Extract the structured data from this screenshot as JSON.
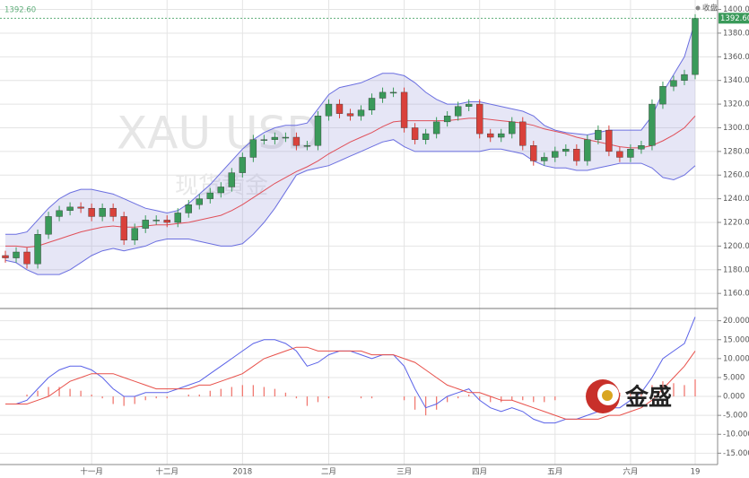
{
  "chart_data": [
    {
      "type": "candlestick",
      "watermark": "XAU USD",
      "watermark_sub": "现货黄金",
      "legend_label": "收盘",
      "last_value_label": "1392.60",
      "logo_text": "金盛",
      "categories": [
        null,
        null,
        null,
        null,
        null,
        null,
        null,
        null,
        "十一月",
        null,
        null,
        null,
        null,
        null,
        null,
        "十二月",
        null,
        null,
        null,
        null,
        null,
        null,
        "2018",
        null,
        null,
        null,
        null,
        null,
        null,
        null,
        "二月",
        null,
        null,
        null,
        null,
        null,
        null,
        "三月",
        null,
        null,
        null,
        null,
        null,
        null,
        "四月",
        null,
        null,
        null,
        null,
        null,
        null,
        "五月",
        null,
        null,
        null,
        null,
        null,
        null,
        "六月",
        null,
        null,
        null,
        null,
        null,
        "19"
      ],
      "open": [
        1192,
        1190,
        1195,
        1185,
        1210,
        1225,
        1230,
        1233,
        1232,
        1225,
        1232,
        1225,
        1205,
        1215,
        1222,
        1222,
        1220,
        1228,
        1235,
        1240,
        1245,
        1250,
        1262,
        1275,
        1290,
        1290,
        1292,
        1292,
        1285,
        1285,
        1310,
        1320,
        1312,
        1310,
        1315,
        1325,
        1330,
        1330,
        1300,
        1290,
        1295,
        1305,
        1310,
        1318,
        1320,
        1295,
        1292,
        1295,
        1305,
        1285,
        1272,
        1275,
        1280,
        1282,
        1272,
        1290,
        1298,
        1280,
        1275,
        1282,
        1285,
        1320,
        1335,
        1340,
        1345
      ],
      "high": [
        1196,
        1199,
        1199,
        1214,
        1229,
        1234,
        1237,
        1237,
        1236,
        1236,
        1236,
        1229,
        1219,
        1226,
        1226,
        1226,
        1232,
        1239,
        1244,
        1249,
        1254,
        1266,
        1279,
        1294,
        1294,
        1296,
        1296,
        1296,
        1289,
        1314,
        1324,
        1324,
        1316,
        1319,
        1329,
        1334,
        1334,
        1334,
        1304,
        1299,
        1309,
        1314,
        1322,
        1324,
        1324,
        1299,
        1299,
        1309,
        1309,
        1289,
        1279,
        1284,
        1286,
        1286,
        1294,
        1302,
        1302,
        1284,
        1286,
        1289,
        1324,
        1339,
        1344,
        1349,
        1396
      ],
      "low": [
        1186,
        1186,
        1181,
        1181,
        1206,
        1221,
        1226,
        1228,
        1221,
        1221,
        1221,
        1201,
        1201,
        1211,
        1218,
        1216,
        1216,
        1224,
        1231,
        1236,
        1241,
        1246,
        1258,
        1271,
        1286,
        1286,
        1288,
        1281,
        1281,
        1281,
        1306,
        1308,
        1306,
        1306,
        1311,
        1321,
        1326,
        1296,
        1286,
        1286,
        1291,
        1301,
        1306,
        1314,
        1291,
        1288,
        1288,
        1291,
        1281,
        1268,
        1268,
        1271,
        1276,
        1268,
        1268,
        1286,
        1276,
        1271,
        1271,
        1278,
        1281,
        1316,
        1331,
        1336,
        1341
      ],
      "close": [
        1190,
        1195,
        1185,
        1210,
        1225,
        1230,
        1233,
        1232,
        1225,
        1232,
        1225,
        1205,
        1215,
        1222,
        1222,
        1220,
        1228,
        1235,
        1240,
        1245,
        1250,
        1262,
        1275,
        1290,
        1290,
        1292,
        1292,
        1285,
        1285,
        1310,
        1320,
        1312,
        1310,
        1315,
        1325,
        1330,
        1330,
        1300,
        1290,
        1295,
        1305,
        1310,
        1318,
        1320,
        1295,
        1292,
        1295,
        1305,
        1285,
        1272,
        1275,
        1280,
        1282,
        1272,
        1290,
        1298,
        1280,
        1275,
        1282,
        1285,
        1320,
        1335,
        1340,
        1345,
        1392.6
      ],
      "up_color": "#3a9a5a",
      "down_color": "#d9413b",
      "bands": {
        "band_color": "#6b6fe0",
        "mid_color": "#e0505a",
        "fill": "rgba(140,140,215,0.22)",
        "upper": [
          1210,
          1210,
          1212,
          1222,
          1232,
          1240,
          1245,
          1248,
          1248,
          1246,
          1244,
          1240,
          1236,
          1232,
          1230,
          1228,
          1230,
          1236,
          1244,
          1252,
          1262,
          1272,
          1282,
          1290,
          1296,
          1300,
          1302,
          1302,
          1304,
          1316,
          1328,
          1334,
          1336,
          1338,
          1342,
          1346,
          1346,
          1344,
          1338,
          1330,
          1324,
          1320,
          1320,
          1322,
          1322,
          1320,
          1318,
          1316,
          1314,
          1310,
          1302,
          1298,
          1296,
          1295,
          1294,
          1296,
          1298,
          1298,
          1298,
          1298,
          1310,
          1330,
          1345,
          1360,
          1390
        ],
        "middle": [
          1200,
          1200,
          1199,
          1200,
          1203,
          1206,
          1209,
          1212,
          1214,
          1216,
          1217,
          1216,
          1216,
          1217,
          1218,
          1218,
          1219,
          1220,
          1222,
          1224,
          1226,
          1230,
          1235,
          1241,
          1247,
          1253,
          1258,
          1263,
          1267,
          1272,
          1278,
          1283,
          1288,
          1292,
          1296,
          1301,
          1305,
          1306,
          1306,
          1306,
          1306,
          1306,
          1307,
          1308,
          1308,
          1307,
          1306,
          1305,
          1304,
          1302,
          1299,
          1297,
          1295,
          1292,
          1290,
          1288,
          1286,
          1284,
          1283,
          1283,
          1285,
          1289,
          1294,
          1300,
          1310
        ],
        "lower": [
          1188,
          1186,
          1180,
          1176,
          1176,
          1176,
          1180,
          1186,
          1192,
          1196,
          1198,
          1196,
          1198,
          1200,
          1204,
          1206,
          1206,
          1206,
          1204,
          1202,
          1200,
          1200,
          1202,
          1210,
          1220,
          1232,
          1246,
          1260,
          1264,
          1266,
          1268,
          1272,
          1276,
          1280,
          1284,
          1288,
          1290,
          1284,
          1280,
          1280,
          1280,
          1280,
          1280,
          1280,
          1280,
          1282,
          1282,
          1280,
          1278,
          1272,
          1268,
          1266,
          1266,
          1264,
          1264,
          1266,
          1268,
          1270,
          1270,
          1270,
          1266,
          1258,
          1256,
          1260,
          1268
        ]
      },
      "ylim": [
        1148,
        1408
      ],
      "yticks": [
        {
          "value": 1160,
          "label": "1160.00"
        },
        {
          "value": 1180,
          "label": "1180.00"
        },
        {
          "value": 1200,
          "label": "1200.00"
        },
        {
          "value": 1220,
          "label": "1220.00"
        },
        {
          "value": 1240,
          "label": "1240.00"
        },
        {
          "value": 1260,
          "label": "1260.00"
        },
        {
          "value": 1280,
          "label": "1280.00"
        },
        {
          "value": 1300,
          "label": "1300.00"
        },
        {
          "value": 1320,
          "label": "1320.00"
        },
        {
          "value": 1340,
          "label": "1340.00"
        },
        {
          "value": 1360,
          "label": "1360.00"
        },
        {
          "value": 1380,
          "label": "1380.00"
        },
        {
          "value": 1400,
          "label": "1400.00"
        }
      ],
      "grid": true
    },
    {
      "type": "macd",
      "series": [
        {
          "color": "#5a62e8",
          "values": [
            -2,
            -2,
            -1,
            2,
            5,
            7,
            8,
            8,
            7,
            5,
            2,
            0,
            0,
            1,
            1,
            1,
            2,
            3,
            4,
            6,
            8,
            10,
            12,
            14,
            15,
            15,
            14,
            12,
            8,
            9,
            11,
            12,
            12,
            11,
            10,
            11,
            11,
            8,
            2,
            -3,
            -2,
            0,
            1,
            2,
            -1,
            -3,
            -4,
            -3,
            -4,
            -6,
            -7,
            -7,
            -6,
            -6,
            -5,
            -4,
            -3,
            -3,
            -1,
            1,
            5,
            10,
            12,
            14,
            21
          ]
        },
        {
          "color": "#e8504a",
          "values": [
            -2,
            -2,
            -2,
            -1,
            0,
            2,
            4,
            5,
            6,
            6,
            6,
            5,
            4,
            3,
            2,
            2,
            2,
            2,
            3,
            3,
            4,
            5,
            6,
            8,
            10,
            11,
            12,
            13,
            13,
            12,
            12,
            12,
            12,
            12,
            11,
            11,
            11,
            10,
            9,
            7,
            5,
            3,
            2,
            1,
            1,
            0,
            -1,
            -1,
            -2,
            -3,
            -4,
            -5,
            -6,
            -6,
            -6,
            -6,
            -5,
            -5,
            -4,
            -3,
            -1,
            2,
            5,
            8,
            12
          ]
        }
      ],
      "histogram": {
        "color": "#f07a72",
        "values": [
          0,
          0,
          0.5,
          1.5,
          2.5,
          2.5,
          2,
          1.5,
          0.5,
          -0.5,
          -2,
          -2.5,
          -2,
          -1,
          -0.5,
          -0.5,
          0,
          0.5,
          0.5,
          1.5,
          2,
          2.5,
          3,
          3,
          2.5,
          2,
          1,
          -0.5,
          -2.5,
          -1.5,
          -0.5,
          0,
          0,
          -0.5,
          -0.5,
          0,
          0,
          -1,
          -3.5,
          -5,
          -3.5,
          -1.5,
          -0.5,
          0.5,
          -1,
          -1.5,
          -1.5,
          -1,
          -1,
          -1.5,
          -1.5,
          -1,
          0,
          0,
          0.5,
          1,
          1,
          1,
          1.5,
          2,
          3,
          4,
          3.5,
          3,
          4.5
        ]
      },
      "ylim": [
        -18,
        23
      ],
      "yticks": [
        {
          "value": -15,
          "label": "-15.000"
        },
        {
          "value": -10,
          "label": "-10.000"
        },
        {
          "value": -5,
          "label": "-5.000"
        },
        {
          "value": 0,
          "label": "0.000"
        },
        {
          "value": 5,
          "label": "5.000"
        },
        {
          "value": 10,
          "label": "10.000"
        },
        {
          "value": 15,
          "label": "15.000"
        },
        {
          "value": 20,
          "label": "20.000"
        }
      ],
      "grid": true
    }
  ]
}
